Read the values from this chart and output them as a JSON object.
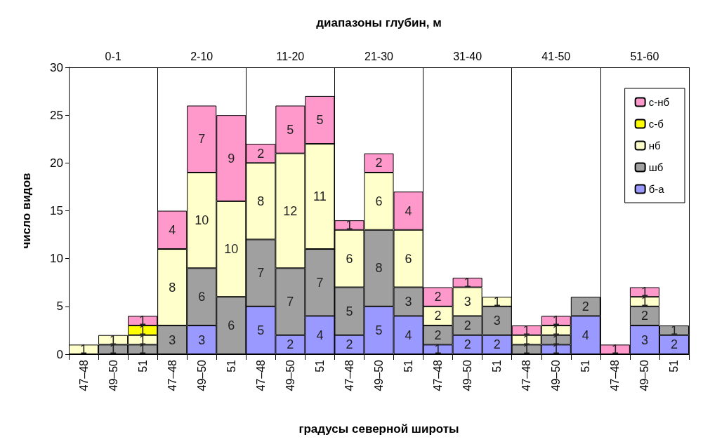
{
  "chart_data": {
    "type": "bar",
    "stacked": true,
    "xlabel": "градусы северной широты",
    "ylabel": "число видов",
    "x2label": "диапазоны глубин, м",
    "annotations": [
      "0-1",
      "2-10",
      "11-20",
      "21-30",
      "31-40",
      "41-50",
      "51-60"
    ],
    "categories": [
      "47–48",
      "49–50",
      "51",
      "47–48",
      "49–50",
      "51",
      "47–48",
      "49–50",
      "51",
      "47–48",
      "49–50",
      "51",
      "47–48",
      "49–50",
      "51",
      "47–48",
      "49–50",
      "51",
      "47–48",
      "49–50",
      "51"
    ],
    "series": [
      {
        "name": "б-а",
        "color": "#9999ff",
        "values": [
          null,
          null,
          null,
          null,
          3,
          null,
          5,
          2,
          4,
          2,
          5,
          4,
          1,
          2,
          2,
          null,
          1,
          4,
          null,
          3,
          2
        ]
      },
      {
        "name": "шб",
        "color": "#a0a0a0",
        "values": [
          null,
          1,
          1,
          3,
          6,
          6,
          7,
          7,
          7,
          5,
          8,
          3,
          2,
          2,
          3,
          1,
          1,
          2,
          null,
          2,
          1
        ]
      },
      {
        "name": "нб",
        "color": "#ffffcc",
        "values": [
          1,
          1,
          1,
          8,
          10,
          10,
          8,
          12,
          11,
          6,
          6,
          6,
          2,
          3,
          1,
          1,
          1,
          null,
          null,
          1,
          null
        ]
      },
      {
        "name": "с-б",
        "color": "#ffff00",
        "values": [
          null,
          null,
          1,
          null,
          null,
          null,
          null,
          null,
          null,
          null,
          null,
          null,
          null,
          null,
          null,
          null,
          null,
          null,
          null,
          null,
          null
        ]
      },
      {
        "name": "с-нб",
        "color": "#ff99cc",
        "values": [
          null,
          null,
          1,
          4,
          7,
          9,
          2,
          5,
          5,
          1,
          2,
          4,
          2,
          1,
          null,
          1,
          1,
          null,
          1,
          1,
          null
        ]
      }
    ],
    "ylim": [
      0,
      30
    ],
    "yticks": [
      0,
      5,
      10,
      15,
      20,
      25,
      30
    ],
    "grid": false,
    "legend": "top right",
    "data_labels": true
  }
}
